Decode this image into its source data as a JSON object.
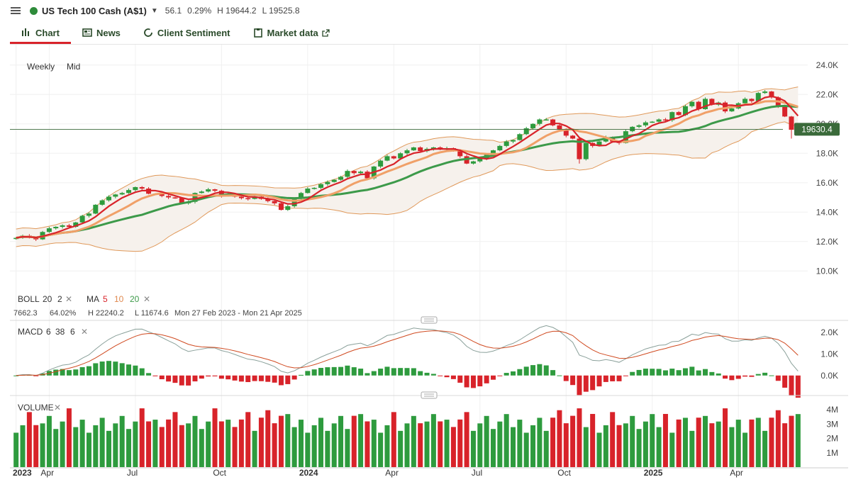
{
  "header": {
    "instrument": "US Tech 100 Cash (A$1)",
    "change": "56.1",
    "change_pct": "0.29%",
    "high": "H 19644.2",
    "low": "L 19525.8"
  },
  "tabs": [
    {
      "label": "Chart",
      "active": true
    },
    {
      "label": "News"
    },
    {
      "label": "Client Sentiment"
    },
    {
      "label": "Market data"
    }
  ],
  "chart_controls": {
    "interval": "Weekly",
    "price_type": "Mid"
  },
  "price_axis": {
    "labels": [
      "24.0K",
      "22.0K",
      "20.0K",
      "18.0K",
      "16.0K",
      "14.0K",
      "12.0K",
      "10.0K"
    ],
    "current_price": "19630.4"
  },
  "indicators": {
    "boll": {
      "label": "BOLL",
      "p1": "20",
      "p2": "2"
    },
    "ma": {
      "label": "MA",
      "p1": "5",
      "p2": "10",
      "p3": "20"
    },
    "stats": {
      "range": "7662.3",
      "pct": "64.02%",
      "high": "H 22240.2",
      "low": "L 11674.6",
      "period": "Mon 27 Feb 2023 - Mon 21 Apr 2025"
    }
  },
  "macd": {
    "label": "MACD",
    "p1": "6",
    "p2": "38",
    "p3": "6",
    "axis": [
      "2.0K",
      "1.0K",
      "0.0K"
    ]
  },
  "volume": {
    "label": "VOLUME",
    "axis": [
      "4M",
      "3M",
      "2M",
      "1M"
    ]
  },
  "time_axis": {
    "labels": [
      "2023",
      "Apr",
      "Jul",
      "Oct",
      "2024",
      "Apr",
      "Jul",
      "Oct",
      "2025",
      "Apr"
    ]
  },
  "colors": {
    "up": "#2e9b3e",
    "down": "#d8232a",
    "ma5": "#d8232a",
    "ma10": "#f0a068",
    "ma20": "#3d9a4a",
    "boll": "#e0995a",
    "accent": "#d8232a"
  },
  "chart_data": {
    "type": "candlestick",
    "interval": "Weekly",
    "ylim": [
      9000,
      25000
    ],
    "closes": [
      12250,
      12400,
      12300,
      12150,
      12650,
      12900,
      13000,
      13100,
      13000,
      13300,
      13750,
      13900,
      14500,
      14800,
      15050,
      15200,
      15300,
      15500,
      15700,
      15600,
      15250,
      15250,
      15100,
      15000,
      14950,
      14600,
      14700,
      15300,
      15400,
      15550,
      15450,
      15100,
      15200,
      15050,
      14950,
      14900,
      15050,
      14900,
      14750,
      14600,
      14150,
      14400,
      14950,
      15300,
      15600,
      15650,
      15900,
      16050,
      16200,
      16400,
      16800,
      16650,
      16750,
      16300,
      17100,
      17500,
      17800,
      17650,
      18000,
      18200,
      18400,
      18150,
      18300,
      18400,
      18250,
      18350,
      18200,
      17800,
      17300,
      17450,
      17650,
      17900,
      18200,
      18500,
      18800,
      18900,
      19300,
      19700,
      20000,
      20300,
      20300,
      19900,
      19600,
      19200,
      19000,
      17600,
      18700,
      18500,
      18800,
      19100,
      18800,
      18700,
      19500,
      19800,
      19900,
      20100,
      20150,
      20300,
      20250,
      20800,
      20600,
      21200,
      21500,
      21000,
      21700,
      21300,
      21450,
      20850,
      21050,
      21400,
      21700,
      21550,
      22100,
      22200,
      21800,
      21200,
      20500,
      19600,
      19630
    ]
  }
}
